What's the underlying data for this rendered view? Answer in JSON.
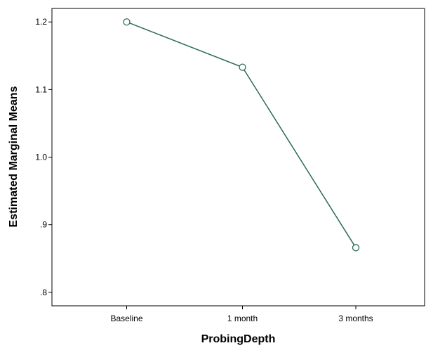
{
  "chart_data": {
    "type": "line",
    "xlabel": "ProbingDepth",
    "ylabel": "Estimated Marginal Means",
    "categories": [
      "Baseline",
      "1 month",
      "3 months"
    ],
    "series": [
      {
        "values": [
          1.2,
          1.133,
          0.866
        ]
      }
    ],
    "ylim": [
      0.78,
      1.22
    ],
    "yticks": [
      0.8,
      0.9,
      1.0,
      1.1,
      1.2
    ],
    "ytick_labels": [
      ".8",
      ".9",
      "1.0",
      "1.1",
      "1.2"
    ],
    "grid": false,
    "marker": "open-circle",
    "colors": {
      "line": "#2e6b59",
      "axis": "#000000",
      "background": "#ffffff"
    }
  }
}
